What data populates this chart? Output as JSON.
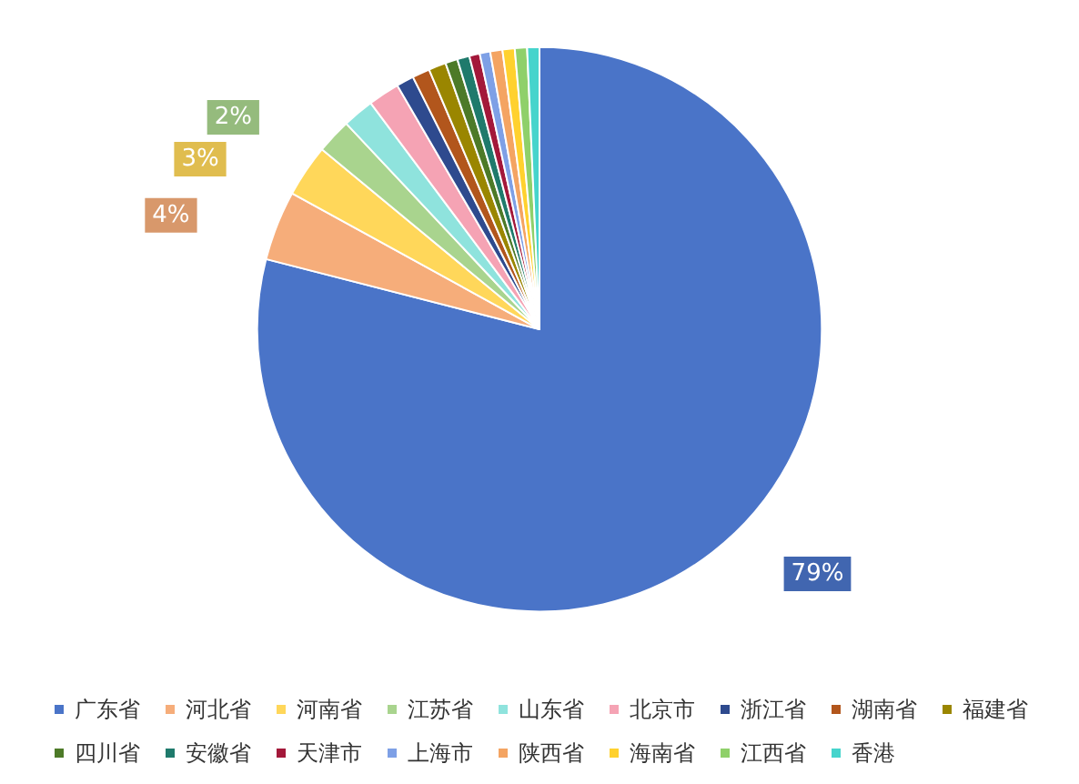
{
  "chart_data": {
    "type": "pie",
    "categories": [
      "广东省",
      "河北省",
      "河南省",
      "江苏省",
      "山东省",
      "北京市",
      "浙江省",
      "湖南省",
      "福建省",
      "四川省",
      "安徽省",
      "天津市",
      "上海市",
      "陕西省",
      "海南省",
      "江西省",
      "香港"
    ],
    "values": [
      79,
      4,
      3,
      2,
      1.8,
      1.8,
      1.0,
      1.0,
      1.0,
      0.7,
      0.7,
      0.6,
      0.6,
      0.7,
      0.7,
      0.7,
      0.7
    ],
    "colors": [
      "#4a74c8",
      "#f6ad7a",
      "#ffd75a",
      "#a9d48e",
      "#8fe3dd",
      "#f5a3b4",
      "#2e4a8e",
      "#b2561c",
      "#9a8600",
      "#4d7a28",
      "#1f7a6c",
      "#a3183a",
      "#7ea0e6",
      "#f4a462",
      "#ffd12e",
      "#8fd06a",
      "#46d4cc"
    ],
    "value_labels": [
      "79%",
      "4%",
      "3%",
      "2%",
      null,
      null,
      null,
      null,
      null,
      null,
      null,
      null,
      null,
      null,
      null,
      null,
      null
    ],
    "legend": "bottom"
  }
}
